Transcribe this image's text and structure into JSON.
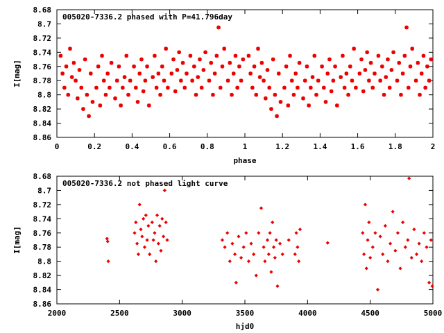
{
  "colors": {
    "points": "#ee0000",
    "axes": "#000000",
    "background": "#ffffff"
  },
  "chart_data": [
    {
      "type": "scatter",
      "title": "005020-7336.2 phased with P=41.796day",
      "xlabel": "phase",
      "ylabel": "I[mag]",
      "xlim": [
        0,
        2
      ],
      "ylim": [
        8.86,
        8.68
      ],
      "y_inverted": true,
      "grid": false,
      "xticks": [
        "0",
        "0.2",
        "0.4",
        "0.6",
        "0.8",
        "1",
        "1.2",
        "1.4",
        "1.6",
        "1.8",
        "2"
      ],
      "yticks": [
        "8.68",
        "8.7",
        "8.72",
        "8.74",
        "8.76",
        "8.78",
        "8.8",
        "8.82",
        "8.84",
        "8.86"
      ],
      "marker": "star",
      "note_points": "phase = (hjd0/41.796) mod 1, plotted twice (0-1 and 1-2)",
      "series": [
        {
          "points": [
            [
              0.02,
              8.745
            ],
            [
              0.03,
              8.77
            ],
            [
              0.04,
              8.79
            ],
            [
              0.05,
              8.76
            ],
            [
              0.06,
              8.8
            ],
            [
              0.07,
              8.735
            ],
            [
              0.08,
              8.775
            ],
            [
              0.09,
              8.755
            ],
            [
              0.1,
              8.78
            ],
            [
              0.11,
              8.805
            ],
            [
              0.12,
              8.765
            ],
            [
              0.13,
              8.79
            ],
            [
              0.14,
              8.82
            ],
            [
              0.15,
              8.75
            ],
            [
              0.16,
              8.8
            ],
            [
              0.17,
              8.83
            ],
            [
              0.18,
              8.77
            ],
            [
              0.19,
              8.81
            ],
            [
              0.21,
              8.79
            ],
            [
              0.22,
              8.76
            ],
            [
              0.23,
              8.815
            ],
            [
              0.24,
              8.745
            ],
            [
              0.25,
              8.78
            ],
            [
              0.26,
              8.8
            ],
            [
              0.27,
              8.77
            ],
            [
              0.28,
              8.79
            ],
            [
              0.29,
              8.755
            ],
            [
              0.31,
              8.805
            ],
            [
              0.32,
              8.78
            ],
            [
              0.33,
              8.76
            ],
            [
              0.34,
              8.815
            ],
            [
              0.35,
              8.79
            ],
            [
              0.36,
              8.775
            ],
            [
              0.37,
              8.745
            ],
            [
              0.38,
              8.8
            ],
            [
              0.39,
              8.78
            ],
            [
              0.41,
              8.76
            ],
            [
              0.42,
              8.79
            ],
            [
              0.43,
              8.81
            ],
            [
              0.44,
              8.77
            ],
            [
              0.45,
              8.75
            ],
            [
              0.46,
              8.795
            ],
            [
              0.47,
              8.78
            ],
            [
              0.48,
              8.76
            ],
            [
              0.49,
              8.815
            ],
            [
              0.51,
              8.775
            ],
            [
              0.52,
              8.745
            ],
            [
              0.53,
              8.79
            ],
            [
              0.54,
              8.77
            ],
            [
              0.55,
              8.8
            ],
            [
              0.56,
              8.76
            ],
            [
              0.57,
              8.78
            ],
            [
              0.58,
              8.735
            ],
            [
              0.59,
              8.79
            ],
            [
              0.61,
              8.77
            ],
            [
              0.62,
              8.75
            ],
            [
              0.63,
              8.795
            ],
            [
              0.64,
              8.765
            ],
            [
              0.65,
              8.74
            ],
            [
              0.66,
              8.78
            ],
            [
              0.67,
              8.755
            ],
            [
              0.68,
              8.79
            ],
            [
              0.69,
              8.77
            ],
            [
              0.71,
              8.745
            ],
            [
              0.72,
              8.78
            ],
            [
              0.73,
              8.76
            ],
            [
              0.74,
              8.8
            ],
            [
              0.75,
              8.775
            ],
            [
              0.76,
              8.75
            ],
            [
              0.77,
              8.79
            ],
            [
              0.78,
              8.765
            ],
            [
              0.79,
              8.74
            ],
            [
              0.81,
              8.78
            ],
            [
              0.82,
              8.755
            ],
            [
              0.83,
              8.8
            ],
            [
              0.84,
              8.77
            ],
            [
              0.85,
              8.745
            ],
            [
              0.86,
              8.705
            ],
            [
              0.87,
              8.79
            ],
            [
              0.88,
              8.76
            ],
            [
              0.89,
              8.735
            ],
            [
              0.91,
              8.78
            ],
            [
              0.92,
              8.755
            ],
            [
              0.93,
              8.8
            ],
            [
              0.94,
              8.77
            ],
            [
              0.95,
              8.745
            ],
            [
              0.96,
              8.79
            ],
            [
              0.97,
              8.76
            ],
            [
              0.98,
              8.78
            ],
            [
              0.99,
              8.75
            ]
          ]
        }
      ]
    },
    {
      "type": "scatter",
      "title": "005020-7336.2 not phased light curve",
      "xlabel": "hjd0",
      "ylabel": "I[mag]",
      "xlim": [
        2000,
        5000
      ],
      "ylim": [
        8.86,
        8.68
      ],
      "y_inverted": true,
      "grid": false,
      "xticks": [
        "2000",
        "2500",
        "3000",
        "3500",
        "4000",
        "4500",
        "5000"
      ],
      "yticks": [
        "8.68",
        "8.7",
        "8.72",
        "8.74",
        "8.76",
        "8.78",
        "8.8",
        "8.82",
        "8.84",
        "8.86"
      ],
      "marker": "diamond",
      "series": [
        {
          "points": [
            [
              2400,
              8.768
            ],
            [
              2405,
              8.772
            ],
            [
              2410,
              8.8
            ],
            [
              2620,
              8.76
            ],
            [
              2630,
              8.745
            ],
            [
              2640,
              8.775
            ],
            [
              2650,
              8.79
            ],
            [
              2660,
              8.72
            ],
            [
              2670,
              8.755
            ],
            [
              2680,
              8.765
            ],
            [
              2690,
              8.74
            ],
            [
              2700,
              8.78
            ],
            [
              2710,
              8.735
            ],
            [
              2720,
              8.77
            ],
            [
              2730,
              8.75
            ],
            [
              2740,
              8.79
            ],
            [
              2760,
              8.745
            ],
            [
              2770,
              8.77
            ],
            [
              2780,
              8.76
            ],
            [
              2790,
              8.8
            ],
            [
              2800,
              8.735
            ],
            [
              2810,
              8.775
            ],
            [
              2820,
              8.75
            ],
            [
              2830,
              8.785
            ],
            [
              2840,
              8.74
            ],
            [
              2850,
              8.765
            ],
            [
              2860,
              8.7
            ],
            [
              2870,
              8.745
            ],
            [
              2880,
              8.77
            ],
            [
              3320,
              8.77
            ],
            [
              3340,
              8.78
            ],
            [
              3360,
              8.76
            ],
            [
              3380,
              8.8
            ],
            [
              3400,
              8.775
            ],
            [
              3420,
              8.79
            ],
            [
              3430,
              8.83
            ],
            [
              3450,
              8.765
            ],
            [
              3470,
              8.795
            ],
            [
              3490,
              8.78
            ],
            [
              3510,
              8.76
            ],
            [
              3530,
              8.8
            ],
            [
              3550,
              8.775
            ],
            [
              3570,
              8.79
            ],
            [
              3590,
              8.82
            ],
            [
              3610,
              8.76
            ],
            [
              3630,
              8.725
            ],
            [
              3650,
              8.78
            ],
            [
              3660,
              8.8
            ],
            [
              3680,
              8.77
            ],
            [
              3690,
              8.79
            ],
            [
              3700,
              8.76
            ],
            [
              3710,
              8.815
            ],
            [
              3720,
              8.745
            ],
            [
              3730,
              8.78
            ],
            [
              3740,
              8.795
            ],
            [
              3750,
              8.77
            ],
            [
              3760,
              8.835
            ],
            [
              3780,
              8.775
            ],
            [
              3800,
              8.79
            ],
            [
              3850,
              8.77
            ],
            [
              3900,
              8.79
            ],
            [
              3910,
              8.76
            ],
            [
              3920,
              8.78
            ],
            [
              3930,
              8.8
            ],
            [
              3940,
              8.755
            ],
            [
              4160,
              8.774
            ],
            [
              4440,
              8.76
            ],
            [
              4450,
              8.79
            ],
            [
              4460,
              8.72
            ],
            [
              4470,
              8.81
            ],
            [
              4480,
              8.77
            ],
            [
              4490,
              8.745
            ],
            [
              4500,
              8.795
            ],
            [
              4520,
              8.78
            ],
            [
              4540,
              8.76
            ],
            [
              4560,
              8.84
            ],
            [
              4580,
              8.765
            ],
            [
              4600,
              8.79
            ],
            [
              4620,
              8.75
            ],
            [
              4640,
              8.8
            ],
            [
              4660,
              8.775
            ],
            [
              4680,
              8.73
            ],
            [
              4700,
              8.785
            ],
            [
              4720,
              8.76
            ],
            [
              4740,
              8.81
            ],
            [
              4760,
              8.745
            ],
            [
              4780,
              8.78
            ],
            [
              4800,
              8.77
            ],
            [
              4810,
              8.683
            ],
            [
              4830,
              8.795
            ],
            [
              4850,
              8.755
            ],
            [
              4870,
              8.79
            ],
            [
              4890,
              8.775
            ],
            [
              4910,
              8.8
            ],
            [
              4930,
              8.76
            ],
            [
              4950,
              8.78
            ],
            [
              4970,
              8.83
            ],
            [
              4985,
              8.77
            ],
            [
              4995,
              8.835
            ]
          ]
        }
      ]
    }
  ]
}
